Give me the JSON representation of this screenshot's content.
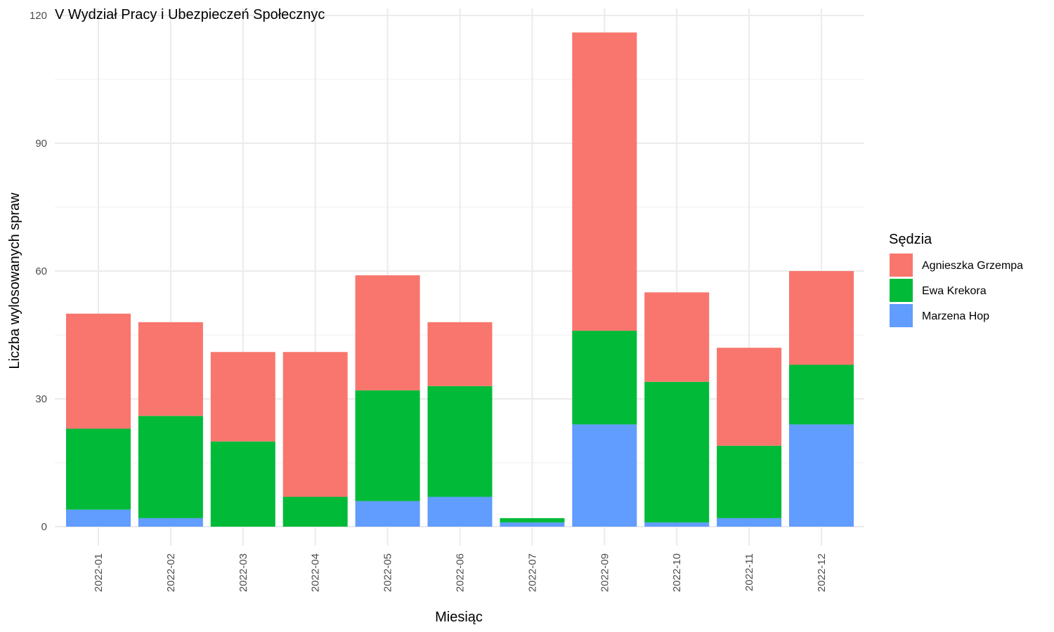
{
  "chart_data": {
    "type": "bar",
    "stacked": true,
    "title": "V Wydział Pracy i Ubezpieczeń Społecznyc",
    "xlabel": "Miesiąc",
    "ylabel": "Liczba wylosowanych spraw",
    "ylim": [
      0,
      120
    ],
    "yticks": [
      0,
      30,
      60,
      90,
      120
    ],
    "grid": true,
    "legend": {
      "title": "Sędzia",
      "position": "right"
    },
    "categories": [
      "2022-01",
      "2022-02",
      "2022-03",
      "2022-04",
      "2022-05",
      "2022-06",
      "2022-07",
      "2022-09",
      "2022-10",
      "2022-11",
      "2022-12"
    ],
    "series": [
      {
        "name": "Marzena Hop",
        "color": "#619CFF",
        "values": [
          4,
          2,
          0,
          0,
          6,
          7,
          1,
          24,
          1,
          2,
          24
        ]
      },
      {
        "name": "Ewa Krekora",
        "color": "#00BA38",
        "values": [
          19,
          24,
          20,
          7,
          26,
          26,
          1,
          22,
          33,
          17,
          14
        ]
      },
      {
        "name": "Agnieszka Grzempa",
        "color": "#F8766D",
        "values": [
          27,
          22,
          21,
          34,
          27,
          15,
          0,
          70,
          21,
          23,
          22
        ]
      }
    ],
    "legend_order": [
      "Agnieszka Grzempa",
      "Ewa Krekora",
      "Marzena Hop"
    ]
  }
}
